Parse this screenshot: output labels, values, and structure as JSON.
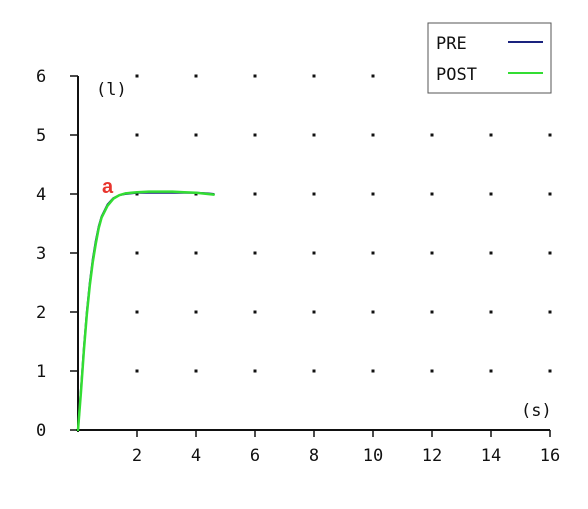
{
  "chart_data": {
    "type": "line",
    "panel_label": "a",
    "panel_label_color": "#e8352e",
    "x_unit": "(s)",
    "y_unit": "(l)",
    "xlim": [
      0,
      16
    ],
    "ylim": [
      0,
      6
    ],
    "x_ticks": [
      2,
      4,
      6,
      8,
      10,
      12,
      14,
      16
    ],
    "y_ticks": [
      0,
      1,
      2,
      3,
      4,
      5,
      6
    ],
    "grid": "dotted",
    "legend_position": "top-right",
    "series": [
      {
        "name": "PRE",
        "color": "#1a237e",
        "x": [
          0.0,
          0.1,
          0.2,
          0.3,
          0.4,
          0.5,
          0.6,
          0.7,
          0.8,
          1.0,
          1.2,
          1.4,
          1.6,
          1.8,
          2.0,
          2.4,
          2.8,
          3.2,
          3.6,
          4.0,
          4.4,
          4.6
        ],
        "y": [
          0.0,
          0.7,
          1.4,
          2.0,
          2.5,
          2.9,
          3.2,
          3.45,
          3.62,
          3.82,
          3.93,
          3.98,
          4.0,
          4.01,
          4.02,
          4.02,
          4.02,
          4.02,
          4.02,
          4.02,
          4.01,
          4.0
        ]
      },
      {
        "name": "POST",
        "color": "#33dd33",
        "x": [
          0.0,
          0.1,
          0.2,
          0.3,
          0.4,
          0.5,
          0.6,
          0.7,
          0.8,
          1.0,
          1.2,
          1.4,
          1.6,
          1.8,
          2.0,
          2.4,
          2.8,
          3.2,
          3.6,
          4.0,
          4.4,
          4.6
        ],
        "y": [
          0.0,
          0.65,
          1.35,
          1.95,
          2.45,
          2.85,
          3.15,
          3.42,
          3.6,
          3.8,
          3.92,
          3.98,
          4.01,
          4.02,
          4.03,
          4.04,
          4.04,
          4.04,
          4.03,
          4.02,
          4.0,
          3.99
        ]
      }
    ]
  }
}
